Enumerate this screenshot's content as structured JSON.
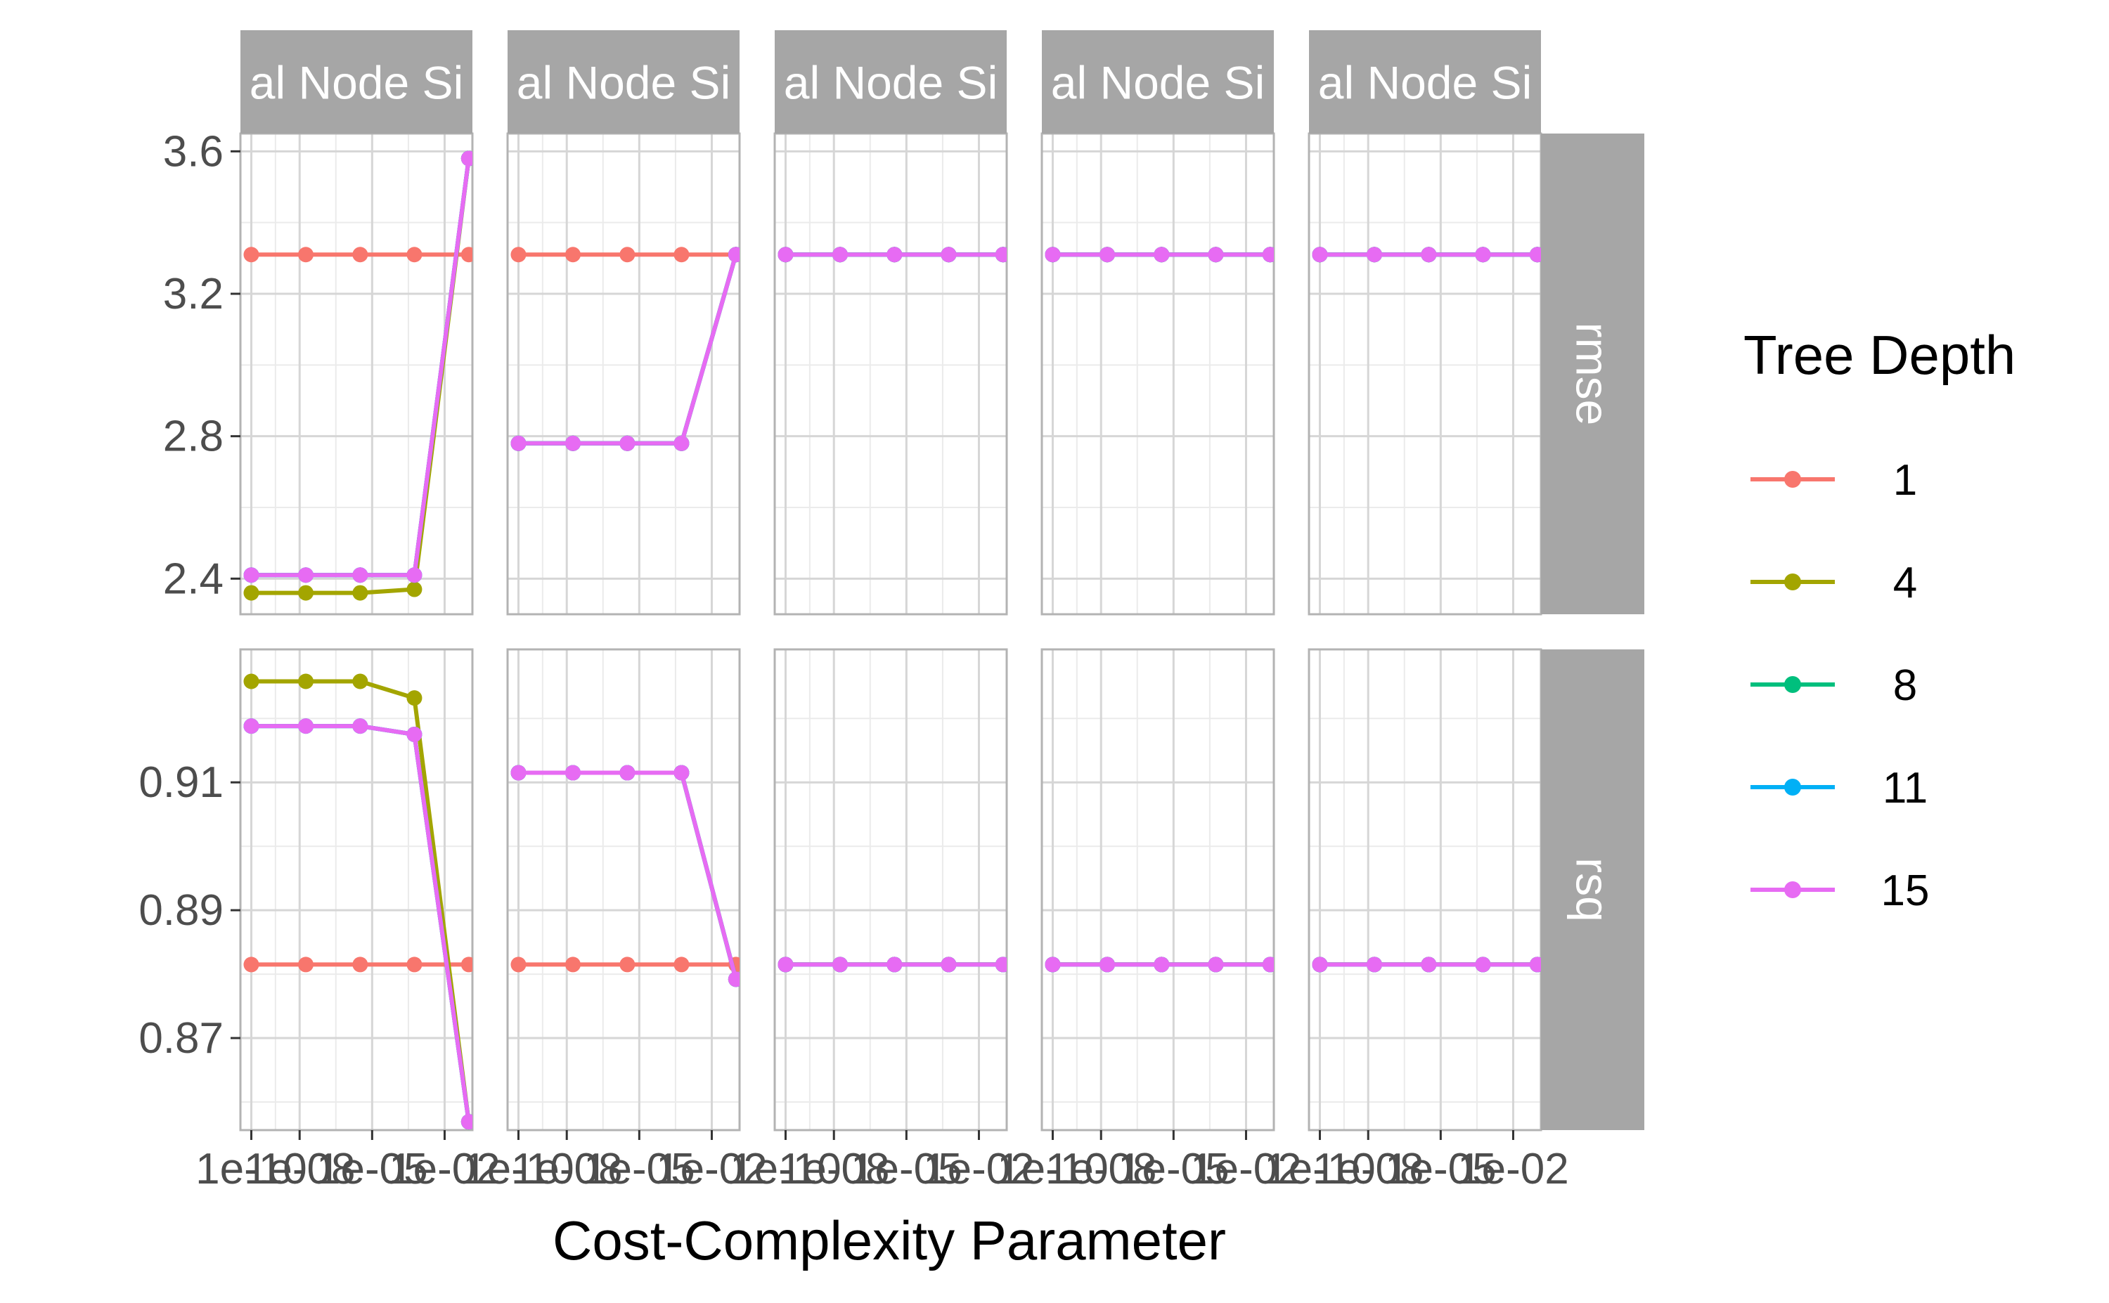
{
  "chart_data": {
    "type": "line",
    "facets": {
      "columns": [
        "al Node Si",
        "al Node Si",
        "al Node Si",
        "al Node Si",
        "al Node Si"
      ],
      "rows": [
        "rmse",
        "rsq"
      ]
    },
    "xlabel": "Cost-Complexity Parameter",
    "x_ticks": [
      "1e-10",
      "1e-08",
      "1e-05",
      "1e-02"
    ],
    "x_scale": "log10",
    "x": [
      1e-10,
      1.8e-08,
      3.2e-06,
      0.00056,
      0.1
    ],
    "y_ticks": {
      "rmse": [
        2.4,
        2.8,
        3.2,
        3.6
      ],
      "rsq": [
        0.87,
        0.89,
        0.91
      ]
    },
    "ylim": {
      "rmse": [
        2.3,
        3.65
      ],
      "rsq": [
        0.8556,
        0.9308
      ]
    },
    "legend": {
      "title": "Tree Depth",
      "position": "right",
      "entries": [
        {
          "label": "1",
          "color": "#F8766D"
        },
        {
          "label": "4",
          "color": "#A3A500"
        },
        {
          "label": "8",
          "color": "#00BF7D"
        },
        {
          "label": "11",
          "color": "#00B0F6"
        },
        {
          "label": "15",
          "color": "#E76BF3"
        }
      ]
    },
    "grid": true,
    "panels": [
      {
        "col": 0,
        "row": "rmse",
        "series": [
          {
            "depth": "1",
            "values": [
              3.31,
              3.31,
              3.31,
              3.31,
              3.31
            ]
          },
          {
            "depth": "4",
            "values": [
              2.36,
              2.36,
              2.36,
              2.37,
              3.58
            ]
          },
          {
            "depth": "8",
            "values": [
              2.41,
              2.41,
              2.41,
              2.41,
              3.58
            ]
          },
          {
            "depth": "11",
            "values": [
              2.41,
              2.41,
              2.41,
              2.41,
              3.58
            ]
          },
          {
            "depth": "15",
            "values": [
              2.41,
              2.41,
              2.41,
              2.41,
              3.58
            ]
          }
        ]
      },
      {
        "col": 1,
        "row": "rmse",
        "series": [
          {
            "depth": "1",
            "values": [
              3.31,
              3.31,
              3.31,
              3.31,
              3.31
            ]
          },
          {
            "depth": "4",
            "values": [
              2.78,
              2.78,
              2.78,
              2.78,
              3.31
            ]
          },
          {
            "depth": "8",
            "values": [
              2.78,
              2.78,
              2.78,
              2.78,
              3.31
            ]
          },
          {
            "depth": "11",
            "values": [
              2.78,
              2.78,
              2.78,
              2.78,
              3.31
            ]
          },
          {
            "depth": "15",
            "values": [
              2.78,
              2.78,
              2.78,
              2.78,
              3.31
            ]
          }
        ]
      },
      {
        "col": 2,
        "row": "rmse",
        "series": [
          {
            "depth": "1",
            "values": [
              3.31,
              3.31,
              3.31,
              3.31,
              3.31
            ]
          },
          {
            "depth": "4",
            "values": [
              3.31,
              3.31,
              3.31,
              3.31,
              3.31
            ]
          },
          {
            "depth": "8",
            "values": [
              3.31,
              3.31,
              3.31,
              3.31,
              3.31
            ]
          },
          {
            "depth": "11",
            "values": [
              3.31,
              3.31,
              3.31,
              3.31,
              3.31
            ]
          },
          {
            "depth": "15",
            "values": [
              3.31,
              3.31,
              3.31,
              3.31,
              3.31
            ]
          }
        ]
      },
      {
        "col": 3,
        "row": "rmse",
        "series": [
          {
            "depth": "1",
            "values": [
              3.31,
              3.31,
              3.31,
              3.31,
              3.31
            ]
          },
          {
            "depth": "4",
            "values": [
              3.31,
              3.31,
              3.31,
              3.31,
              3.31
            ]
          },
          {
            "depth": "8",
            "values": [
              3.31,
              3.31,
              3.31,
              3.31,
              3.31
            ]
          },
          {
            "depth": "11",
            "values": [
              3.31,
              3.31,
              3.31,
              3.31,
              3.31
            ]
          },
          {
            "depth": "15",
            "values": [
              3.31,
              3.31,
              3.31,
              3.31,
              3.31
            ]
          }
        ]
      },
      {
        "col": 4,
        "row": "rmse",
        "series": [
          {
            "depth": "1",
            "values": [
              3.31,
              3.31,
              3.31,
              3.31,
              3.31
            ]
          },
          {
            "depth": "4",
            "values": [
              3.31,
              3.31,
              3.31,
              3.31,
              3.31
            ]
          },
          {
            "depth": "8",
            "values": [
              3.31,
              3.31,
              3.31,
              3.31,
              3.31
            ]
          },
          {
            "depth": "11",
            "values": [
              3.31,
              3.31,
              3.31,
              3.31,
              3.31
            ]
          },
          {
            "depth": "15",
            "values": [
              3.31,
              3.31,
              3.31,
              3.31,
              3.31
            ]
          }
        ]
      },
      {
        "col": 0,
        "row": "rsq",
        "series": [
          {
            "depth": "1",
            "values": [
              0.8815,
              0.8815,
              0.8815,
              0.8815,
              0.8815
            ]
          },
          {
            "depth": "4",
            "values": [
              0.9258,
              0.9258,
              0.9258,
              0.9232,
              0.8569
            ]
          },
          {
            "depth": "8",
            "values": [
              0.9188,
              0.9188,
              0.9188,
              0.9175,
              0.8569
            ]
          },
          {
            "depth": "11",
            "values": [
              0.9188,
              0.9188,
              0.9188,
              0.9175,
              0.8569
            ]
          },
          {
            "depth": "15",
            "values": [
              0.9188,
              0.9188,
              0.9188,
              0.9175,
              0.8569
            ]
          }
        ]
      },
      {
        "col": 1,
        "row": "rsq",
        "series": [
          {
            "depth": "1",
            "values": [
              0.8815,
              0.8815,
              0.8815,
              0.8815,
              0.8815
            ]
          },
          {
            "depth": "4",
            "values": [
              0.9115,
              0.9115,
              0.9115,
              0.9115,
              0.8792
            ]
          },
          {
            "depth": "8",
            "values": [
              0.9115,
              0.9115,
              0.9115,
              0.9115,
              0.8792
            ]
          },
          {
            "depth": "11",
            "values": [
              0.9115,
              0.9115,
              0.9115,
              0.9115,
              0.8792
            ]
          },
          {
            "depth": "15",
            "values": [
              0.9115,
              0.9115,
              0.9115,
              0.9115,
              0.8792
            ]
          }
        ]
      },
      {
        "col": 2,
        "row": "rsq",
        "series": [
          {
            "depth": "1",
            "values": [
              0.8815,
              0.8815,
              0.8815,
              0.8815,
              0.8815
            ]
          },
          {
            "depth": "4",
            "values": [
              0.8815,
              0.8815,
              0.8815,
              0.8815,
              0.8815
            ]
          },
          {
            "depth": "8",
            "values": [
              0.8815,
              0.8815,
              0.8815,
              0.8815,
              0.8815
            ]
          },
          {
            "depth": "11",
            "values": [
              0.8815,
              0.8815,
              0.8815,
              0.8815,
              0.8815
            ]
          },
          {
            "depth": "15",
            "values": [
              0.8815,
              0.8815,
              0.8815,
              0.8815,
              0.8815
            ]
          }
        ]
      },
      {
        "col": 3,
        "row": "rsq",
        "series": [
          {
            "depth": "1",
            "values": [
              0.8815,
              0.8815,
              0.8815,
              0.8815,
              0.8815
            ]
          },
          {
            "depth": "4",
            "values": [
              0.8815,
              0.8815,
              0.8815,
              0.8815,
              0.8815
            ]
          },
          {
            "depth": "8",
            "values": [
              0.8815,
              0.8815,
              0.8815,
              0.8815,
              0.8815
            ]
          },
          {
            "depth": "11",
            "values": [
              0.8815,
              0.8815,
              0.8815,
              0.8815,
              0.8815
            ]
          },
          {
            "depth": "15",
            "values": [
              0.8815,
              0.8815,
              0.8815,
              0.8815,
              0.8815
            ]
          }
        ]
      },
      {
        "col": 4,
        "row": "rsq",
        "series": [
          {
            "depth": "1",
            "values": [
              0.8815,
              0.8815,
              0.8815,
              0.8815,
              0.8815
            ]
          },
          {
            "depth": "4",
            "values": [
              0.8815,
              0.8815,
              0.8815,
              0.8815,
              0.8815
            ]
          },
          {
            "depth": "8",
            "values": [
              0.8815,
              0.8815,
              0.8815,
              0.8815,
              0.8815
            ]
          },
          {
            "depth": "11",
            "values": [
              0.8815,
              0.8815,
              0.8815,
              0.8815,
              0.8815
            ]
          },
          {
            "depth": "15",
            "values": [
              0.8815,
              0.8815,
              0.8815,
              0.8815,
              0.8815
            ]
          }
        ]
      }
    ]
  }
}
